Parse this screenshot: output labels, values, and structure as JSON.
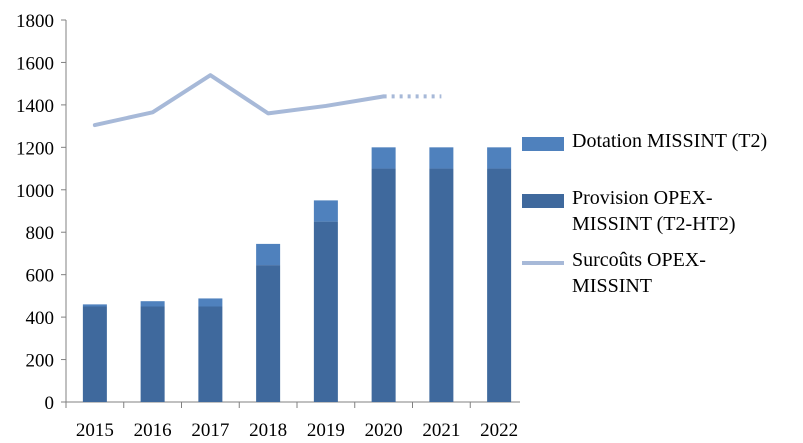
{
  "chart_data": {
    "type": "bar",
    "stacked": true,
    "categories": [
      "2015",
      "2016",
      "2017",
      "2018",
      "2019",
      "2020",
      "2021",
      "2022"
    ],
    "ylim": [
      0,
      1800
    ],
    "yticks": [
      "0",
      "200",
      "400",
      "600",
      "800",
      "1000",
      "1200",
      "1400",
      "1600",
      "1800"
    ],
    "series": [
      {
        "name": "Provision OPEX-MISSINT (T2-HT2)",
        "kind": "bar",
        "color": "#3F699D",
        "values": [
          450,
          450,
          450,
          645,
          850,
          1100,
          1100,
          1100
        ]
      },
      {
        "name": "Dotation MISSINT (T2)",
        "kind": "bar",
        "color": "#4F81BD",
        "values": [
          10,
          25,
          38,
          100,
          100,
          100,
          100,
          100
        ]
      },
      {
        "name": "Surcoûts OPEX-MISSINT",
        "kind": "line",
        "color": "#A7B9D8",
        "values": [
          1305,
          1365,
          1540,
          1360,
          1395,
          1440,
          1440,
          null
        ],
        "dashed_from_index": 5
      }
    ],
    "legend": {
      "placement": "right",
      "order": [
        1,
        0,
        2
      ],
      "lines": [
        [
          "Dotation MISSINT (T2)"
        ],
        [
          "Provision OPEX-",
          "MISSINT (T2-HT2)"
        ],
        [
          "Surcoûts OPEX-",
          "MISSINT"
        ]
      ]
    },
    "grid": false
  }
}
